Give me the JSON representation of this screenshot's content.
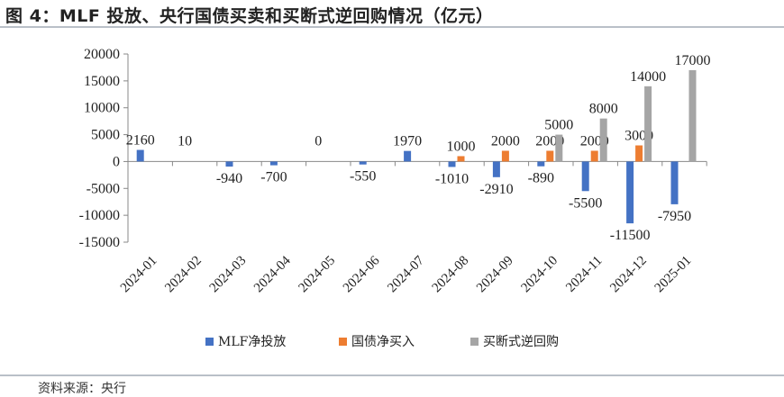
{
  "title": "图 4：MLF 投放、央行国债买卖和买断式逆回购情况（亿元）",
  "source": "资料来源：央行",
  "chart_data": {
    "type": "bar",
    "title": "MLF 投放、央行国债买卖和买断式逆回购情况（亿元）",
    "xlabel": "",
    "ylabel": "",
    "ylim": [
      -15000,
      20000
    ],
    "yticks": [
      20000,
      15000,
      10000,
      5000,
      0,
      -5000,
      -10000,
      -15000
    ],
    "categories": [
      "2024-01",
      "2024-02",
      "2024-03",
      "2024-04",
      "2024-05",
      "2024-06",
      "2024-07",
      "2024-08",
      "2024-09",
      "2024-10",
      "2024-11",
      "2024-12",
      "2025-01"
    ],
    "series": [
      {
        "name": "MLF净投放",
        "color": "#4472c4",
        "values": [
          2160,
          10,
          -940,
          -700,
          0,
          -550,
          1970,
          -1010,
          -2910,
          -890,
          -5500,
          -11500,
          -7950
        ],
        "labels": [
          "2160",
          "10",
          "-940",
          "-700",
          "0",
          "-550",
          "1970",
          "-1010",
          "-2910",
          "-890",
          "-5500",
          "-11500",
          "-7950"
        ]
      },
      {
        "name": "国债净买入",
        "color": "#ed7d31",
        "values": [
          null,
          null,
          null,
          null,
          null,
          null,
          null,
          1000,
          2000,
          2000,
          2000,
          3000,
          null
        ],
        "labels": [
          null,
          null,
          null,
          null,
          null,
          null,
          null,
          "1000",
          "2000",
          "2000",
          "2000",
          "3000",
          null
        ]
      },
      {
        "name": "买断式逆回购",
        "color": "#a5a5a5",
        "values": [
          null,
          null,
          null,
          null,
          null,
          null,
          null,
          null,
          null,
          5000,
          8000,
          14000,
          17000
        ],
        "labels": [
          null,
          null,
          null,
          null,
          null,
          null,
          null,
          null,
          null,
          "5000",
          "8000",
          "14000",
          "17000"
        ]
      }
    ],
    "legend": "bottom",
    "grid": false
  }
}
